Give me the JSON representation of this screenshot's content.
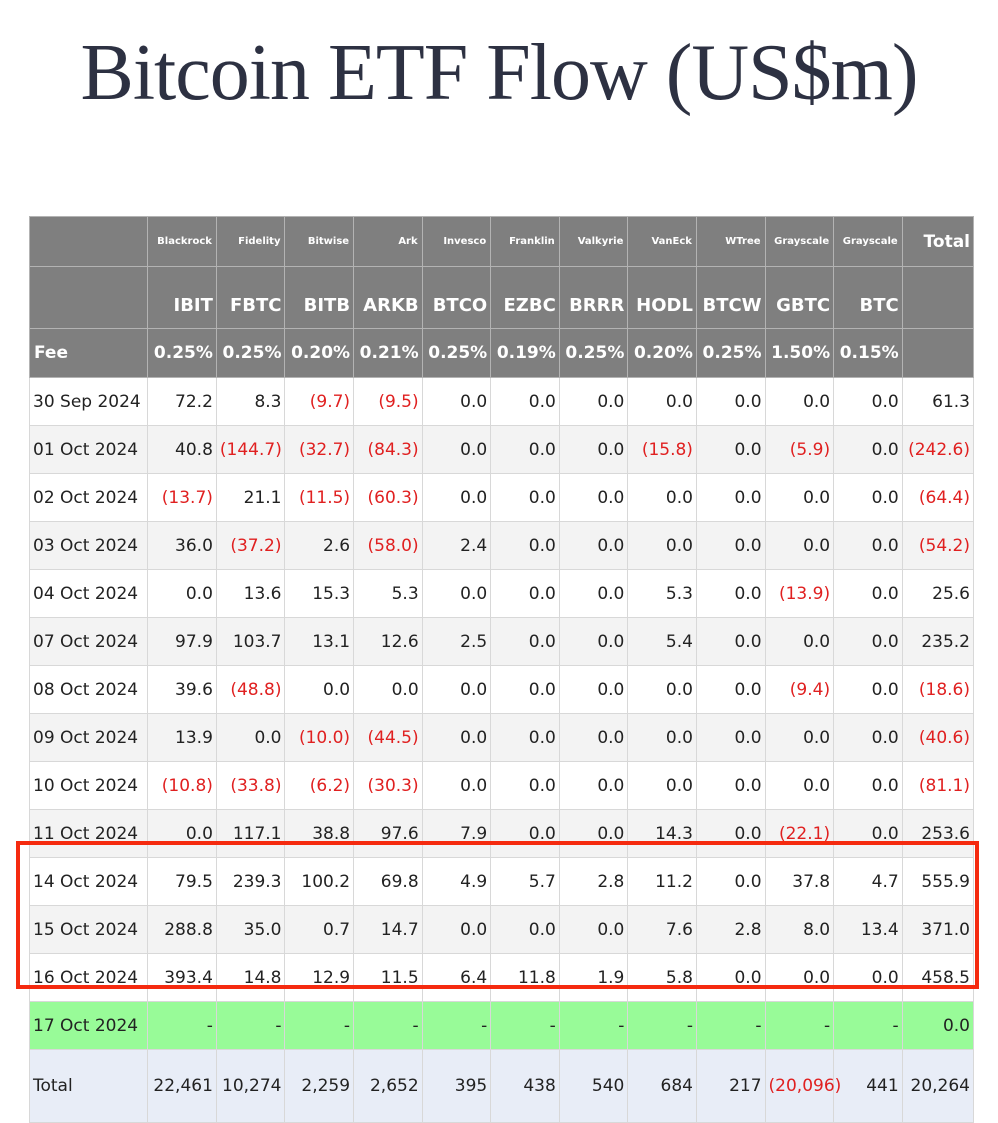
{
  "title": "Bitcoin ETF Flow (US$m)",
  "header": {
    "issuers": [
      "Blackrock",
      "Fidelity",
      "Bitwise",
      "Ark",
      "Invesco",
      "Franklin",
      "Valkyrie",
      "VanEck",
      "WTree",
      "Grayscale",
      "Grayscale"
    ],
    "tickers": [
      "IBIT",
      "FBTC",
      "BITB",
      "ARKB",
      "BTCO",
      "EZBC",
      "BRRR",
      "HODL",
      "BTCW",
      "GBTC",
      "BTC"
    ],
    "total_label": "Total",
    "fee_label": "Fee",
    "fees": [
      "0.25%",
      "0.25%",
      "0.20%",
      "0.21%",
      "0.25%",
      "0.19%",
      "0.25%",
      "0.20%",
      "0.25%",
      "1.50%",
      "0.15%"
    ]
  },
  "rows": [
    {
      "date": "30 Sep 2024",
      "values": [
        "72.2",
        "8.3",
        "(9.7)",
        "(9.5)",
        "0.0",
        "0.0",
        "0.0",
        "0.0",
        "0.0",
        "0.0",
        "0.0"
      ],
      "total": "61.3"
    },
    {
      "date": "01 Oct 2024",
      "values": [
        "40.8",
        "(144.7)",
        "(32.7)",
        "(84.3)",
        "0.0",
        "0.0",
        "0.0",
        "(15.8)",
        "0.0",
        "(5.9)",
        "0.0"
      ],
      "total": "(242.6)"
    },
    {
      "date": "02 Oct 2024",
      "values": [
        "(13.7)",
        "21.1",
        "(11.5)",
        "(60.3)",
        "0.0",
        "0.0",
        "0.0",
        "0.0",
        "0.0",
        "0.0",
        "0.0"
      ],
      "total": "(64.4)"
    },
    {
      "date": "03 Oct 2024",
      "values": [
        "36.0",
        "(37.2)",
        "2.6",
        "(58.0)",
        "2.4",
        "0.0",
        "0.0",
        "0.0",
        "0.0",
        "0.0",
        "0.0"
      ],
      "total": "(54.2)"
    },
    {
      "date": "04 Oct 2024",
      "values": [
        "0.0",
        "13.6",
        "15.3",
        "5.3",
        "0.0",
        "0.0",
        "0.0",
        "5.3",
        "0.0",
        "(13.9)",
        "0.0"
      ],
      "total": "25.6"
    },
    {
      "date": "07 Oct 2024",
      "values": [
        "97.9",
        "103.7",
        "13.1",
        "12.6",
        "2.5",
        "0.0",
        "0.0",
        "5.4",
        "0.0",
        "0.0",
        "0.0"
      ],
      "total": "235.2"
    },
    {
      "date": "08 Oct 2024",
      "values": [
        "39.6",
        "(48.8)",
        "0.0",
        "0.0",
        "0.0",
        "0.0",
        "0.0",
        "0.0",
        "0.0",
        "(9.4)",
        "0.0"
      ],
      "total": "(18.6)"
    },
    {
      "date": "09 Oct 2024",
      "values": [
        "13.9",
        "0.0",
        "(10.0)",
        "(44.5)",
        "0.0",
        "0.0",
        "0.0",
        "0.0",
        "0.0",
        "0.0",
        "0.0"
      ],
      "total": "(40.6)"
    },
    {
      "date": "10 Oct 2024",
      "values": [
        "(10.8)",
        "(33.8)",
        "(6.2)",
        "(30.3)",
        "0.0",
        "0.0",
        "0.0",
        "0.0",
        "0.0",
        "0.0",
        "0.0"
      ],
      "total": "(81.1)"
    },
    {
      "date": "11 Oct 2024",
      "values": [
        "0.0",
        "117.1",
        "38.8",
        "97.6",
        "7.9",
        "0.0",
        "0.0",
        "14.3",
        "0.0",
        "(22.1)",
        "0.0"
      ],
      "total": "253.6"
    },
    {
      "date": "14 Oct 2024",
      "values": [
        "79.5",
        "239.3",
        "100.2",
        "69.8",
        "4.9",
        "5.7",
        "2.8",
        "11.2",
        "0.0",
        "37.8",
        "4.7"
      ],
      "total": "555.9"
    },
    {
      "date": "15 Oct 2024",
      "values": [
        "288.8",
        "35.0",
        "0.7",
        "14.7",
        "0.0",
        "0.0",
        "0.0",
        "7.6",
        "2.8",
        "8.0",
        "13.4"
      ],
      "total": "371.0"
    },
    {
      "date": "16 Oct 2024",
      "values": [
        "393.4",
        "14.8",
        "12.9",
        "11.5",
        "6.4",
        "11.8",
        "1.9",
        "5.8",
        "0.0",
        "0.0",
        "0.0"
      ],
      "total": "458.5"
    }
  ],
  "pending_row": {
    "date": "17 Oct 2024",
    "values": [
      "-",
      "-",
      "-",
      "-",
      "-",
      "-",
      "-",
      "-",
      "-",
      "-",
      "-"
    ],
    "total": "0.0"
  },
  "totals_row": {
    "label": "Total",
    "values": [
      "22,461",
      "10,274",
      "2,259",
      "2,652",
      "395",
      "438",
      "540",
      "684",
      "217",
      "(20,096)",
      "441"
    ],
    "total": "20,264"
  },
  "colors": {
    "header_bg": "#7f7f7f",
    "negative": "#e02020",
    "pending_bg": "#98fb98",
    "totals_bg": "#e8edf7",
    "highlight_border": "#f52a0f"
  }
}
